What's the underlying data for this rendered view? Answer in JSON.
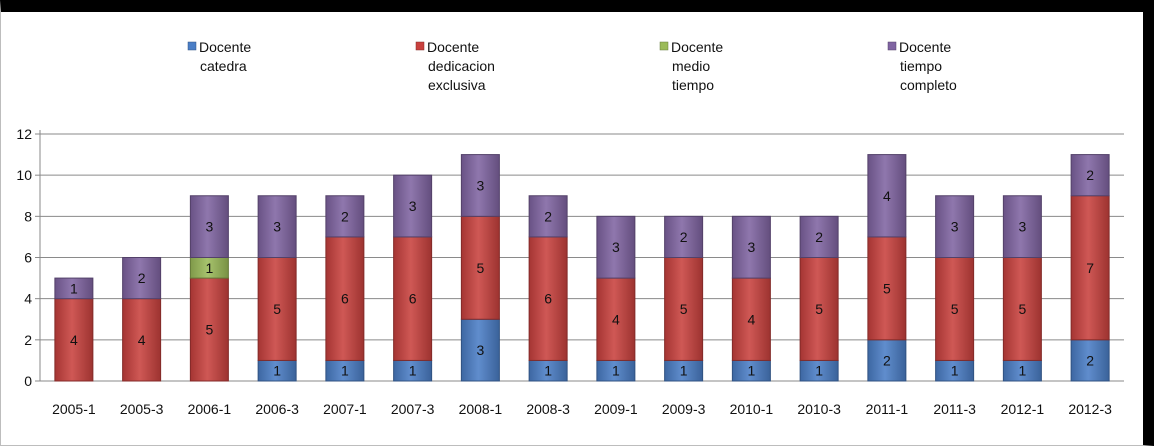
{
  "chart_data": {
    "type": "bar",
    "stacked": true,
    "categories": [
      "2005-1",
      "2005-3",
      "2006-1",
      "2006-3",
      "2007-1",
      "2007-3",
      "2008-1",
      "2008-3",
      "2009-1",
      "2009-3",
      "2010-1",
      "2010-3",
      "2011-1",
      "2011-3",
      "2012-1",
      "2012-3"
    ],
    "series": [
      {
        "name": "Docente catedra",
        "name_lines": [
          "Docente",
          "catedra"
        ],
        "color": "#4a7ec6",
        "values": [
          0,
          0,
          0,
          1,
          1,
          1,
          3,
          1,
          1,
          1,
          1,
          1,
          2,
          1,
          1,
          2
        ]
      },
      {
        "name": "Docente dedicacion exclusiva",
        "name_lines": [
          "Docente",
          "dedicacion",
          "exclusiva"
        ],
        "color": "#c9413e",
        "values": [
          4,
          4,
          5,
          5,
          6,
          6,
          5,
          6,
          4,
          5,
          4,
          5,
          5,
          5,
          5,
          7
        ]
      },
      {
        "name": "Docente medio tiempo",
        "name_lines": [
          "Docente",
          "medio",
          "tiempo"
        ],
        "color": "#9bbb59",
        "values": [
          0,
          0,
          1,
          0,
          0,
          0,
          0,
          0,
          0,
          0,
          0,
          0,
          0,
          0,
          0,
          0
        ]
      },
      {
        "name": "Docente tiempo completo",
        "name_lines": [
          "Docente",
          "tiempo",
          "completo"
        ],
        "color": "#8064a2",
        "values": [
          1,
          2,
          3,
          3,
          2,
          3,
          3,
          2,
          3,
          2,
          3,
          2,
          4,
          3,
          3,
          2
        ]
      }
    ],
    "yticks": [
      0,
      2,
      4,
      6,
      8,
      10,
      12
    ],
    "ylim": [
      0,
      12
    ],
    "grid": true,
    "legend_position": "top",
    "title": "",
    "xlabel": "",
    "ylabel": ""
  }
}
